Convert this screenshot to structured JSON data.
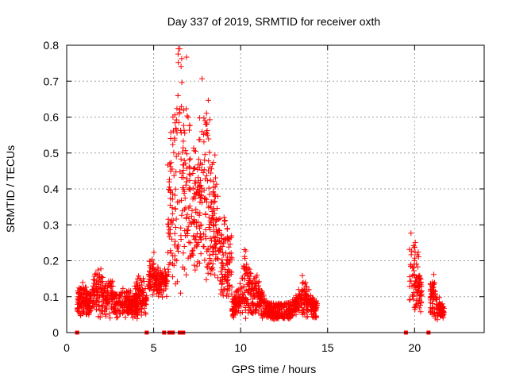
{
  "chart_data": {
    "type": "scatter",
    "title": "Day 337 of 2019, SRMTID for receiver oxth",
    "xlabel": "GPS time / hours",
    "ylabel": "SRMTID / TECUs",
    "xlim": [
      0,
      24
    ],
    "ylim": [
      0,
      0.8
    ],
    "xticks": [
      0,
      5,
      10,
      15,
      20
    ],
    "xtick_labels": [
      "0",
      "5",
      "10",
      "15",
      "20"
    ],
    "yticks": [
      0,
      0.1,
      0.2,
      0.3,
      0.4,
      0.5,
      0.6,
      0.7,
      0.8
    ],
    "ytick_labels": [
      "0",
      "0.1",
      "0.2",
      "0.3",
      "0.4",
      "0.5",
      "0.6",
      "0.7",
      "0.8"
    ],
    "grid": true,
    "marker": "plus",
    "color": "#ff0000",
    "zero_square_markers_x": [
      0.6,
      4.6,
      5.6,
      5.9,
      6.1,
      6.5,
      6.7,
      19.5,
      20.8
    ],
    "series": [
      {
        "name": "SRMTID",
        "description": "approximate sampled points read from the figure",
        "segments": [
          {
            "x_start": 0.6,
            "x_end": 4.1,
            "baseline": 0.06,
            "spread": 0.05,
            "peaks": [
              [
                0.9,
                0.12
              ],
              [
                1.8,
                0.17
              ],
              [
                2.5,
                0.13
              ],
              [
                3.4,
                0.12
              ]
            ]
          },
          {
            "x_start": 3.9,
            "x_end": 4.6,
            "baseline": 0.07,
            "spread": 0.06,
            "peaks": [
              [
                4.2,
                0.14
              ]
            ]
          },
          {
            "x_start": 4.7,
            "x_end": 5.8,
            "baseline": 0.12,
            "spread": 0.06,
            "peaks": [
              [
                4.9,
                0.19
              ],
              [
                5.6,
                0.16
              ]
            ]
          },
          {
            "x_start": 5.8,
            "x_end": 9.5,
            "baseline": 0.18,
            "spread": 0.2,
            "peaks": [
              [
                6.2,
                0.57
              ],
              [
                6.5,
                0.78
              ],
              [
                6.9,
                0.6
              ],
              [
                7.3,
                0.47
              ],
              [
                8.0,
                0.65
              ],
              [
                8.3,
                0.45
              ],
              [
                8.9,
                0.25
              ]
            ]
          },
          {
            "x_start": 9.5,
            "x_end": 14.4,
            "baseline": 0.06,
            "spread": 0.05,
            "peaks": [
              [
                10.3,
                0.2
              ],
              [
                10.8,
                0.15
              ],
              [
                13.6,
                0.13
              ]
            ]
          },
          {
            "x_start": 19.7,
            "x_end": 20.4,
            "baseline": 0.08,
            "spread": 0.07,
            "peaks": [
              [
                19.9,
                0.25
              ]
            ]
          },
          {
            "x_start": 20.9,
            "x_end": 21.7,
            "baseline": 0.05,
            "spread": 0.04,
            "peaks": [
              [
                21.0,
                0.13
              ]
            ]
          }
        ]
      }
    ]
  }
}
